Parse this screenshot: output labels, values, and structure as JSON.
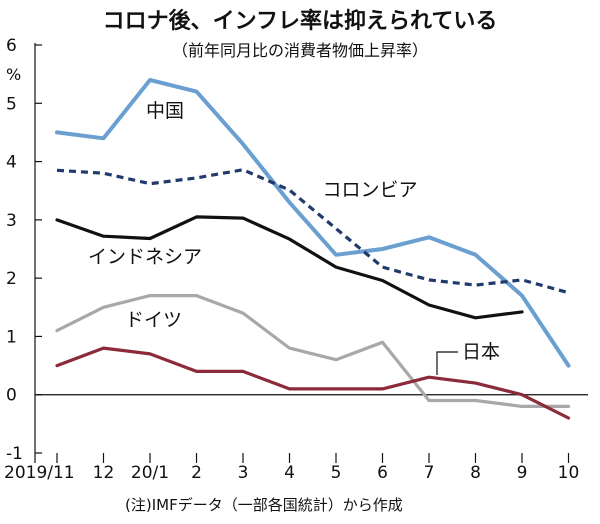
{
  "chart_data": {
    "type": "line",
    "title": "コロナ後、インフレ率は抑えられている",
    "subtitle": "（前年同月比の消費者物価上昇率）",
    "ylabel": "%",
    "ylim": [
      -1,
      6
    ],
    "yticks": [
      "-1",
      "0",
      "1",
      "2",
      "3",
      "4",
      "5",
      "6"
    ],
    "x_tick_labels": [
      "2019/11",
      "12",
      "20/1",
      "2",
      "3",
      "4",
      "5",
      "6",
      "7",
      "8",
      "9",
      "10"
    ],
    "footnote": "(注)IMFデータ（一部各国統計）から作成",
    "series": [
      {
        "name": "中国",
        "color": "#6a9fd0",
        "style": "solid",
        "values": [
          4.5,
          4.4,
          5.4,
          5.2,
          4.3,
          3.3,
          2.4,
          2.5,
          2.7,
          2.4,
          1.7,
          0.5
        ]
      },
      {
        "name": "コロンビア",
        "color": "#1f3a6b",
        "style": "dashed",
        "values": [
          3.85,
          3.8,
          3.62,
          3.72,
          3.86,
          3.51,
          2.85,
          2.19,
          1.97,
          1.88,
          1.97,
          1.75
        ]
      },
      {
        "name": "インドネシア",
        "color": "#111111",
        "style": "solid",
        "values": [
          3.0,
          2.72,
          2.68,
          3.05,
          3.03,
          2.67,
          2.19,
          1.96,
          1.54,
          1.32,
          1.42,
          null
        ]
      },
      {
        "name": "ドイツ",
        "color": "#a8a8a8",
        "style": "solid",
        "values": [
          1.1,
          1.5,
          1.7,
          1.7,
          1.4,
          0.8,
          0.6,
          0.9,
          -0.1,
          -0.1,
          -0.2,
          -0.2
        ]
      },
      {
        "name": "日本",
        "color": "#8b2a3a",
        "style": "solid",
        "values": [
          0.5,
          0.8,
          0.7,
          0.4,
          0.4,
          0.1,
          0.1,
          0.1,
          0.3,
          0.2,
          0.0,
          -0.4
        ]
      }
    ]
  }
}
